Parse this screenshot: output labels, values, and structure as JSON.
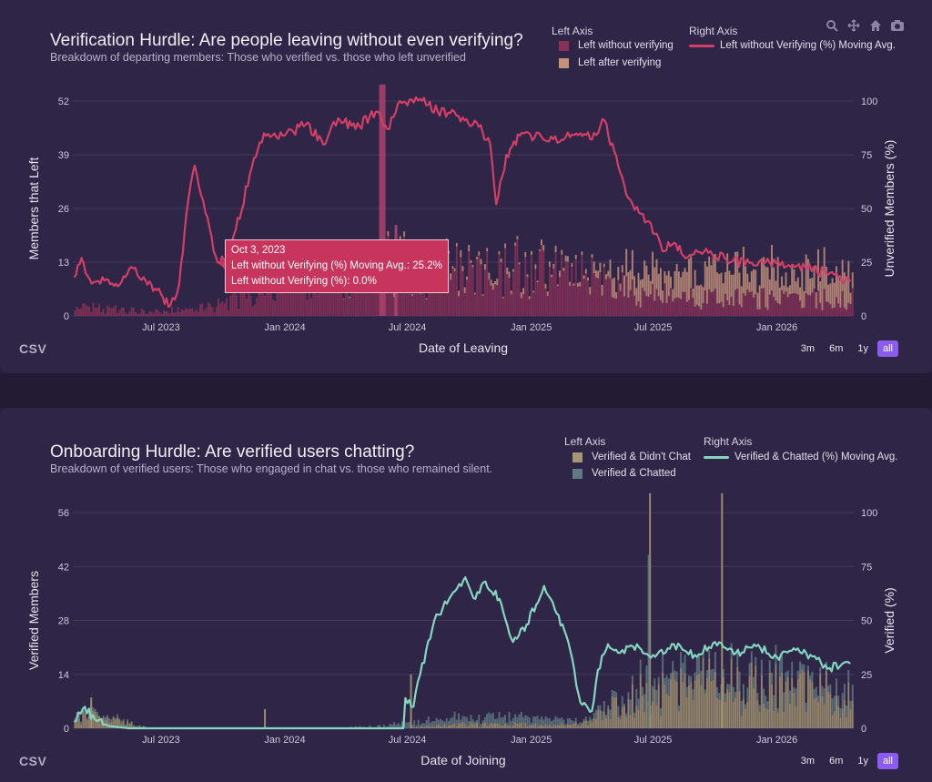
{
  "panels": {
    "top": {
      "title": "Verification Hurdle: Are people leaving without even verifying?",
      "subtitle": "Breakdown of departing members: Those who verified vs. those who left unverified",
      "legend_left_head": "Left Axis",
      "legend_right_head": "Right Axis",
      "legend_bar1": "Left without verifying",
      "legend_bar2": "Left after verifying",
      "legend_line": "Left without Verifying (%) Moving Avg.",
      "csv": "CSV",
      "xlabel": "Date of Leaving",
      "ylabel": "Members that Left",
      "y2label": "Unverified Members (%)",
      "tooltip": {
        "date": "Oct 3, 2023",
        "line1": "Left without Verifying (%) Moving Avg.: 25.2%",
        "line2": "Left without Verifying (%): 0.0%"
      }
    },
    "bottom": {
      "title": "Onboarding Hurdle: Are verified users chatting?",
      "subtitle": "Breakdown of verified users: Those who engaged in chat vs. those who remained silent.",
      "legend_left_head": "Left Axis",
      "legend_right_head": "Right Axis",
      "legend_bar1": "Verified & Didn't Chat",
      "legend_bar2": "Verified & Chatted",
      "legend_line": "Verified & Chatted (%) Moving Avg.",
      "csv": "CSV",
      "xlabel": "Date of Joining",
      "ylabel": "Verified Members",
      "y2label": "Verified (%)"
    }
  },
  "range_buttons": [
    "3m",
    "6m",
    "1y",
    "all"
  ],
  "active_range": "all",
  "modebar_icons": [
    "zoom-icon",
    "pan-icon",
    "home-icon",
    "camera-icon"
  ],
  "colors": {
    "bar_unverified": "#8a3157",
    "bar_verified_left": "#c4927a",
    "line_left": "#d23f67",
    "bar_didnt_chat": "#a59772",
    "bar_chatted": "#5f7a82",
    "line_chatted": "#84d6c0",
    "grid": "#44395c",
    "tick": "#cfc8de"
  },
  "chart_data": [
    {
      "type": "bar",
      "title": "Verification Hurdle: Are people leaving without even verifying?",
      "subtitle": "Breakdown of departing members: Those who verified vs. those who left unverified",
      "xlabel": "Date of Leaving",
      "ylabel": "Members that Left",
      "y2label": "Unverified Members (%)",
      "ylim": [
        0,
        52
      ],
      "y2lim": [
        0,
        100
      ],
      "yticks": [
        "0",
        "13",
        "26",
        "39",
        "52"
      ],
      "y2ticks": [
        "0",
        "25",
        "50",
        "75",
        "100"
      ],
      "xticks": [
        "Jul 2023",
        "Jan 2024",
        "Jul 2024",
        "Jan 2025",
        "Jul 2025",
        "Jan 2026"
      ],
      "xlim": [
        "2023-02-20",
        "2026-04-25"
      ],
      "grid": true,
      "legend": "top-right",
      "series": [
        {
          "name": "Left without verifying",
          "axis": "left",
          "type": "bar",
          "x": [
            "2023-03",
            "2023-06",
            "2023-09",
            "2023-12",
            "2024-03",
            "2024-06",
            "2024-09",
            "2024-12",
            "2025-03",
            "2025-06",
            "2025-09",
            "2025-12",
            "2026-03"
          ],
          "values": [
            2,
            1,
            2,
            8,
            9,
            12,
            10,
            11,
            9,
            5,
            4,
            4,
            4
          ]
        },
        {
          "name": "Left after verifying",
          "axis": "left",
          "type": "bar",
          "x": [
            "2023-03",
            "2023-06",
            "2023-09",
            "2023-12",
            "2024-03",
            "2024-06",
            "2024-09",
            "2024-12",
            "2025-03",
            "2025-06",
            "2025-09",
            "2025-12",
            "2026-03"
          ],
          "values": [
            0,
            0,
            0,
            0,
            0,
            1,
            1,
            1,
            1,
            5,
            7,
            7,
            6
          ]
        },
        {
          "name": "Left without Verifying (%) Moving Avg.",
          "axis": "right",
          "type": "line",
          "x": [
            "2023-02-22",
            "2023-03-05",
            "2023-03-20",
            "2023-04-05",
            "2023-04-25",
            "2023-05-15",
            "2023-06-05",
            "2023-06-25",
            "2023-07-15",
            "2023-07-28",
            "2023-08-08",
            "2023-08-20",
            "2023-09-05",
            "2023-09-20",
            "2023-10-03",
            "2023-10-20",
            "2023-11-10",
            "2023-12-01",
            "2024-01-01",
            "2024-02-01",
            "2024-03-01",
            "2024-03-20",
            "2024-04-15",
            "2024-05-15",
            "2024-06-01",
            "2024-06-20",
            "2024-07-01",
            "2024-07-20",
            "2024-08-15",
            "2024-09-15",
            "2024-10-15",
            "2024-11-01",
            "2024-11-10",
            "2024-11-25",
            "2024-12-15",
            "2025-01-15",
            "2025-02-15",
            "2025-03-15",
            "2025-04-01",
            "2025-04-20",
            "2025-05-10",
            "2025-05-25",
            "2025-06-10",
            "2025-06-25",
            "2025-07-15",
            "2025-08-01",
            "2025-08-15",
            "2025-09-15",
            "2025-10-15",
            "2025-11-15",
            "2025-12-15",
            "2026-01-15",
            "2026-02-15",
            "2026-03-15",
            "2026-04-20"
          ],
          "values": [
            18,
            27,
            15,
            18,
            15,
            22,
            18,
            12,
            5,
            15,
            48,
            70,
            48,
            28,
            25.2,
            40,
            66,
            85,
            84,
            89,
            80,
            92,
            87,
            95,
            87,
            100,
            98,
            101,
            95,
            93,
            88,
            80,
            52,
            75,
            84,
            84,
            82,
            85,
            82,
            91,
            70,
            55,
            48,
            44,
            30,
            34,
            28,
            30,
            27,
            24,
            25,
            23,
            22,
            20,
            16
          ]
        }
      ]
    },
    {
      "type": "bar",
      "title": "Onboarding Hurdle: Are verified users chatting?",
      "subtitle": "Breakdown of verified users: Those who engaged in chat vs. those who remained silent.",
      "xlabel": "Date of Joining",
      "ylabel": "Verified Members",
      "y2label": "Verified (%)",
      "ylim": [
        0,
        56
      ],
      "y2lim": [
        0,
        100
      ],
      "yticks": [
        "0",
        "14",
        "28",
        "42",
        "56"
      ],
      "y2ticks": [
        "0",
        "25",
        "50",
        "75",
        "100"
      ],
      "xticks": [
        "Jul 2023",
        "Jan 2024",
        "Jul 2024",
        "Jan 2025",
        "Jul 2025",
        "Jan 2026"
      ],
      "xlim": [
        "2023-02-20",
        "2026-04-25"
      ],
      "grid": true,
      "legend": "top-right",
      "series": [
        {
          "name": "Verified & Didn't Chat",
          "axis": "left",
          "type": "bar",
          "x": [
            "2023-03",
            "2023-06",
            "2023-09",
            "2023-12",
            "2024-03",
            "2024-06",
            "2024-09",
            "2024-12",
            "2025-03",
            "2025-06",
            "2025-09",
            "2025-12",
            "2026-03"
          ],
          "values": [
            3,
            0,
            0,
            0,
            0,
            0,
            1,
            1,
            1,
            9,
            11,
            10,
            9
          ]
        },
        {
          "name": "Verified & Chatted",
          "axis": "left",
          "type": "bar",
          "x": [
            "2023-03",
            "2023-06",
            "2023-09",
            "2023-12",
            "2024-03",
            "2024-06",
            "2024-09",
            "2024-12",
            "2025-03",
            "2025-06",
            "2025-09",
            "2025-12",
            "2026-03"
          ],
          "values": [
            1,
            0,
            0,
            0,
            0,
            1,
            2,
            2,
            1,
            3,
            3,
            3,
            3
          ]
        },
        {
          "name": "Verified & Chatted (%) Moving Avg.",
          "axis": "right",
          "type": "line",
          "x": [
            "2023-02-22",
            "2023-03-10",
            "2023-03-25",
            "2023-04-15",
            "2023-05-15",
            "2023-07-01",
            "2024-01-01",
            "2024-06-25",
            "2024-06-28",
            "2024-07-10",
            "2024-07-20",
            "2024-08-10",
            "2024-09-01",
            "2024-09-25",
            "2024-10-10",
            "2024-10-25",
            "2024-11-15",
            "2024-12-05",
            "2024-12-25",
            "2025-01-20",
            "2025-02-05",
            "2025-02-25",
            "2025-03-15",
            "2025-04-01",
            "2025-04-10",
            "2025-04-25",
            "2025-05-10",
            "2025-06-01",
            "2025-07-01",
            "2025-08-01",
            "2025-09-01",
            "2025-10-01",
            "2025-11-01",
            "2025-12-01",
            "2026-01-01",
            "2026-02-01",
            "2026-03-01",
            "2026-03-20",
            "2026-04-20"
          ],
          "values": [
            3,
            10,
            4,
            1,
            0,
            0,
            0,
            0,
            14,
            10,
            25,
            50,
            60,
            70,
            60,
            68,
            60,
            40,
            48,
            66,
            55,
            40,
            12,
            8,
            27,
            39,
            35,
            38,
            34,
            39,
            34,
            40,
            35,
            38,
            33,
            37,
            32,
            28,
            30
          ]
        }
      ]
    }
  ]
}
